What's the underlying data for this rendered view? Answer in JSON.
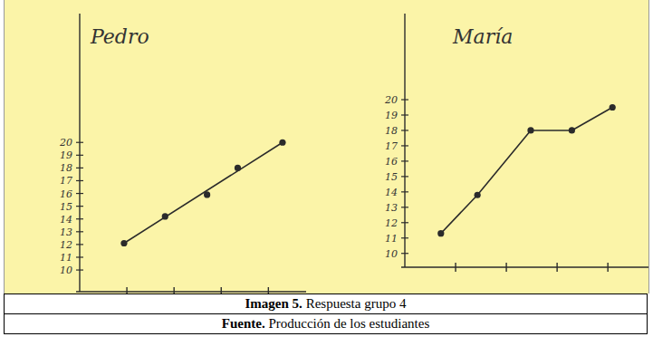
{
  "chart_data": [
    {
      "type": "line",
      "title": "Pedro",
      "tick_labels": "y",
      "xlim": [
        0,
        4.8
      ],
      "xticks": [
        1,
        2,
        3,
        4
      ],
      "ylim": [
        8.3,
        30.1
      ],
      "yticks": [
        10,
        11,
        12,
        13,
        14,
        15,
        16,
        17,
        18,
        19,
        20
      ],
      "series": [
        {
          "type": "scatter",
          "marker": "circle",
          "color": "#2b2b2b",
          "x": [
            0.94,
            1.81,
            2.7,
            3.35,
            4.3
          ],
          "values": [
            12.1,
            14.2,
            15.9,
            18,
            20
          ]
        },
        {
          "type": "line",
          "line_style": "solid",
          "color": "#2b2b2b",
          "x": [
            0.94,
            4.3
          ],
          "values": [
            12.1,
            20
          ]
        }
      ]
    },
    {
      "type": "line",
      "title": "María",
      "tick_labels": "y",
      "xlim": [
        0,
        4.8
      ],
      "xticks": [
        1,
        2,
        3,
        4
      ],
      "ylim": [
        9.1,
        25.6
      ],
      "yticks": [
        10,
        11,
        12,
        13,
        14,
        15,
        16,
        17,
        18,
        19,
        20
      ],
      "series": [
        {
          "type": "line",
          "marker": "circle",
          "line_style": "solid",
          "color": "#2b2b2b",
          "x": [
            0.71,
            1.43,
            2.48,
            3.29,
            4.09
          ],
          "values": [
            11.3,
            13.8,
            18,
            18,
            19.5
          ]
        }
      ]
    }
  ],
  "caption": {
    "label": "Imagen 5.",
    "text": "Respuesta grupo 4"
  },
  "source": {
    "label": "Fuente.",
    "text": "Producción de los estudiantes"
  }
}
